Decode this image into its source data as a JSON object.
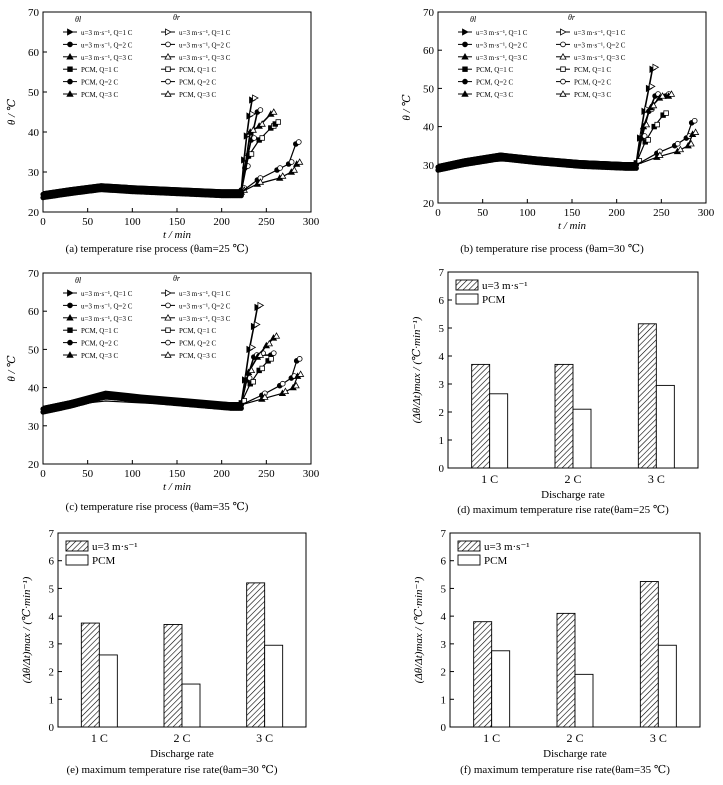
{
  "chart_data": [
    {
      "type": "line",
      "caption": "(a) temperature rise process (θam=25 ℃)",
      "xlabel": "t / min",
      "ylabel": "θ / ℃",
      "xlim": [
        0,
        300
      ],
      "ylim": [
        20,
        70
      ],
      "xticks": [
        0,
        50,
        100,
        150,
        200,
        250,
        300
      ],
      "yticks": [
        20,
        30,
        40,
        50,
        60,
        70
      ],
      "legend": {
        "col_headers": [
          "θl",
          "θr"
        ],
        "labels": [
          "u=3 m·s⁻¹, Q=1 C",
          "u=3 m·s⁻¹, Q=2 C",
          "u=3 m·s⁻¹, Q=3 C",
          "PCM, Q=1 C",
          "PCM, Q=2 C",
          "PCM, Q=3 C"
        ]
      },
      "series": [
        {
          "name": "u=3 m·s⁻¹, Q=3 C",
          "x": [
            0,
            30,
            65,
            100,
            150,
            200,
            222,
            225,
            228,
            231,
            234
          ],
          "y": [
            25,
            26,
            27,
            26.5,
            26,
            25.5,
            25.5,
            33,
            39,
            44,
            48
          ]
        },
        {
          "name": "u=3 m·s⁻¹, Q=2 C",
          "x": [
            0,
            30,
            65,
            100,
            150,
            200,
            222,
            226,
            233,
            240
          ],
          "y": [
            25,
            26,
            27,
            26.5,
            26,
            25.5,
            25.5,
            31,
            38,
            45
          ]
        },
        {
          "name": "PCM, Q=3 C",
          "x": [
            0,
            30,
            65,
            100,
            150,
            200,
            222,
            232,
            242,
            255
          ],
          "y": [
            25,
            25.5,
            26,
            26,
            25.5,
            25,
            25,
            40,
            41.5,
            44.5
          ]
        },
        {
          "name": "PCM, Q=2 C",
          "x": [
            0,
            30,
            65,
            100,
            150,
            200,
            222,
            230,
            242,
            255,
            260
          ],
          "y": [
            25,
            25.5,
            26,
            26,
            25.5,
            25,
            25,
            34,
            38,
            41,
            42
          ]
        },
        {
          "name": "u=3 m·s⁻¹, Q=1 C",
          "x": [
            0,
            30,
            65,
            100,
            150,
            200,
            222,
            240,
            262,
            275,
            283
          ],
          "y": [
            25,
            25.5,
            26,
            26,
            25.5,
            25,
            25,
            28,
            30.5,
            32,
            37
          ]
        },
        {
          "name": "PCM, Q=1 C",
          "x": [
            0,
            30,
            65,
            100,
            150,
            200,
            222,
            240,
            265,
            278,
            284
          ],
          "y": [
            25,
            25.5,
            26,
            26,
            25.5,
            25,
            25,
            27,
            28.5,
            30,
            32
          ]
        }
      ]
    },
    {
      "type": "line",
      "caption": "(b) temperature rise process (θam=30 ℃)",
      "xlabel": "t / min",
      "ylabel": "θ / ℃",
      "xlim": [
        0,
        300
      ],
      "ylim": [
        20,
        70
      ],
      "xticks": [
        0,
        50,
        100,
        150,
        200,
        250,
        300
      ],
      "yticks": [
        20,
        30,
        40,
        50,
        60,
        70
      ],
      "legend": {
        "col_headers": [
          "θl",
          "θr"
        ],
        "labels": [
          "u=3 m·s⁻¹, Q=1 C",
          "u=3 m·s⁻¹, Q=2 C",
          "u=3 m·s⁻¹, Q=3 C",
          "PCM, Q=1 C",
          "PCM, Q=2 C",
          "PCM, Q=3 C"
        ]
      },
      "series": [
        {
          "name": "u=3 m·s⁻¹, Q=3 C",
          "x": [
            0,
            30,
            70,
            110,
            160,
            210,
            222,
            226,
            231,
            236,
            240
          ],
          "y": [
            30,
            31.5,
            33,
            32,
            31,
            30.5,
            30.5,
            37,
            44,
            50,
            55
          ]
        },
        {
          "name": "u=3 m·s⁻¹, Q=2 C",
          "x": [
            0,
            30,
            70,
            110,
            160,
            210,
            222,
            228,
            236,
            243,
            255
          ],
          "y": [
            30,
            31.5,
            33,
            32,
            31,
            30.5,
            30.5,
            37,
            44,
            48,
            48
          ]
        },
        {
          "name": "PCM, Q=3 C",
          "x": [
            0,
            30,
            70,
            110,
            160,
            210,
            222,
            230,
            238,
            248,
            258
          ],
          "y": [
            30,
            31,
            32,
            31.5,
            31,
            30.5,
            30.5,
            40,
            45,
            47.5,
            48
          ]
        },
        {
          "name": "PCM, Q=2 C",
          "x": [
            0,
            30,
            70,
            110,
            160,
            210,
            222,
            232,
            242,
            252
          ],
          "y": [
            30,
            31,
            32,
            31.5,
            31,
            30.5,
            30.5,
            36,
            40,
            43
          ]
        },
        {
          "name": "u=3 m·s⁻¹, Q=1 C",
          "x": [
            0,
            30,
            70,
            110,
            160,
            210,
            222,
            245,
            265,
            278,
            284
          ],
          "y": [
            30,
            30.5,
            31.5,
            31,
            30.5,
            30,
            30,
            33,
            35,
            37,
            41
          ]
        },
        {
          "name": "PCM, Q=1 C",
          "x": [
            0,
            30,
            70,
            110,
            160,
            210,
            222,
            245,
            268,
            280,
            285
          ],
          "y": [
            30,
            30.5,
            31,
            31,
            30.5,
            30,
            30,
            32,
            33.5,
            35,
            38
          ]
        }
      ]
    },
    {
      "type": "line",
      "caption": "(c) temperature rise process (θam=35 ℃)",
      "xlabel": "t / min",
      "ylabel": "θ / ℃",
      "xlim": [
        0,
        300
      ],
      "ylim": [
        20,
        70
      ],
      "xticks": [
        0,
        50,
        100,
        150,
        200,
        250,
        300
      ],
      "yticks": [
        20,
        30,
        40,
        50,
        60,
        70
      ],
      "legend": {
        "col_headers": [
          "θl",
          "θr"
        ],
        "labels": [
          "u=3 m·s⁻¹, Q=1 C",
          "u=3 m·s⁻¹, Q=2 C",
          "u=3 m·s⁻¹, Q=3 C",
          "PCM, Q=1 C",
          "PCM, Q=2 C",
          "PCM, Q=3 C"
        ]
      },
      "series": [
        {
          "name": "u=3 m·s⁻¹, Q=3 C",
          "x": [
            0,
            30,
            70,
            110,
            160,
            210,
            222,
            226,
            231,
            236,
            240
          ],
          "y": [
            35,
            36.5,
            39,
            38,
            37,
            36,
            36,
            42,
            50,
            56,
            61
          ]
        },
        {
          "name": "u=3 m·s⁻¹, Q=2 C",
          "x": [
            0,
            30,
            70,
            110,
            160,
            210,
            222,
            228,
            236,
            243,
            255
          ],
          "y": [
            35,
            36.5,
            38.5,
            37.5,
            36.5,
            36,
            36,
            42,
            48,
            48.5,
            48.5
          ]
        },
        {
          "name": "PCM, Q=3 C",
          "x": [
            0,
            30,
            70,
            110,
            160,
            210,
            222,
            230,
            240,
            250,
            258
          ],
          "y": [
            35,
            36,
            37.5,
            37,
            36.5,
            36,
            36,
            44,
            48,
            51,
            53
          ]
        },
        {
          "name": "PCM, Q=2 C",
          "x": [
            0,
            30,
            70,
            110,
            160,
            210,
            222,
            232,
            242,
            252
          ],
          "y": [
            35,
            36,
            37.5,
            37,
            36.5,
            36,
            36,
            41,
            44.5,
            47
          ]
        },
        {
          "name": "u=3 m·s⁻¹, Q=1 C",
          "x": [
            0,
            30,
            70,
            110,
            160,
            210,
            222,
            245,
            265,
            278,
            284
          ],
          "y": [
            35,
            35.5,
            37,
            36.5,
            36,
            35.5,
            35.5,
            38,
            40.5,
            42.5,
            47
          ]
        },
        {
          "name": "PCM, Q=1 C",
          "x": [
            0,
            30,
            70,
            110,
            160,
            210,
            222,
            245,
            268,
            280,
            285
          ],
          "y": [
            35,
            35.5,
            36.5,
            36,
            35.5,
            35.5,
            35.5,
            37,
            38.5,
            40,
            43
          ]
        }
      ]
    },
    {
      "type": "bar",
      "caption": "(d) maximum temperature rise rate(θam=25 ℃)",
      "xlabel": "Discharge rate",
      "ylabel": "(Δθ/Δt)max / (℃·min⁻¹)",
      "categories": [
        "1 C",
        "2 C",
        "3 C"
      ],
      "ylim": [
        0,
        7
      ],
      "yticks": [
        0,
        1,
        2,
        3,
        4,
        5,
        6,
        7
      ],
      "series": [
        {
          "name": "u=3 m·s⁻¹",
          "pattern": "hatched",
          "values": [
            3.7,
            3.7,
            5.15
          ]
        },
        {
          "name": "PCM",
          "pattern": "open",
          "values": [
            2.65,
            2.1,
            2.95
          ]
        }
      ]
    },
    {
      "type": "bar",
      "caption": "(e) maximum temperature rise rate(θam=30 ℃)",
      "xlabel": "Discharge rate",
      "ylabel": "(Δθ/Δt)max / (℃·min⁻¹)",
      "categories": [
        "1 C",
        "2 C",
        "3 C"
      ],
      "ylim": [
        0,
        7
      ],
      "yticks": [
        0,
        1,
        2,
        3,
        4,
        5,
        6,
        7
      ],
      "series": [
        {
          "name": "u=3 m·s⁻¹",
          "pattern": "hatched",
          "values": [
            3.75,
            3.7,
            5.2
          ]
        },
        {
          "name": "PCM",
          "pattern": "open",
          "values": [
            2.6,
            1.55,
            2.95
          ]
        }
      ]
    },
    {
      "type": "bar",
      "caption": "(f) maximum temperature rise rate(θam=35 ℃)",
      "xlabel": "Discharge rate",
      "ylabel": "(Δθ/Δt)max / (℃·min⁻¹)",
      "categories": [
        "1 C",
        "2 C",
        "3 C"
      ],
      "ylim": [
        0,
        7
      ],
      "yticks": [
        0,
        1,
        2,
        3,
        4,
        5,
        6,
        7
      ],
      "series": [
        {
          "name": "u=3 m·s⁻¹",
          "pattern": "hatched",
          "values": [
            3.8,
            4.1,
            5.25
          ]
        },
        {
          "name": "PCM",
          "pattern": "open",
          "values": [
            2.75,
            1.9,
            2.95
          ]
        }
      ]
    }
  ]
}
